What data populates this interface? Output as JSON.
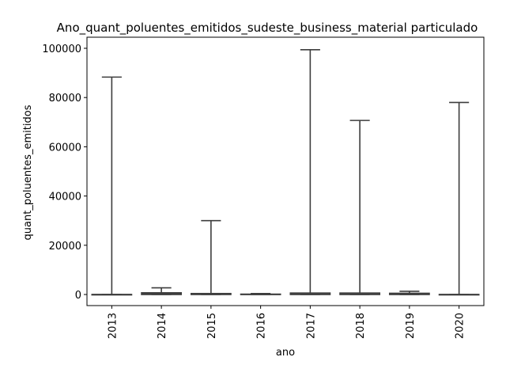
{
  "chart_data": {
    "type": "box",
    "title": "Ano_quant_poluentes_emitidos_sudeste_business_material particulado",
    "xlabel": "ano",
    "ylabel": "quant_poluentes_emitidos",
    "ylim": [
      -4500,
      104500
    ],
    "yticks": [
      0,
      20000,
      40000,
      60000,
      80000,
      100000
    ],
    "categories": [
      "2013",
      "2014",
      "2015",
      "2016",
      "2017",
      "2018",
      "2019",
      "2020"
    ],
    "boxes": [
      {
        "x": "2013",
        "min": 0,
        "q1": 0,
        "median": 0,
        "q3": 0,
        "max": 88300
      },
      {
        "x": "2014",
        "min": 0,
        "q1": 0,
        "median": 300,
        "q3": 700,
        "max": 2700
      },
      {
        "x": "2015",
        "min": 0,
        "q1": 0,
        "median": 100,
        "q3": 400,
        "max": 30000
      },
      {
        "x": "2016",
        "min": 0,
        "q1": 0,
        "median": 50,
        "q3": 150,
        "max": 400
      },
      {
        "x": "2017",
        "min": 0,
        "q1": 0,
        "median": 200,
        "q3": 600,
        "max": 99400
      },
      {
        "x": "2018",
        "min": 0,
        "q1": 0,
        "median": 200,
        "q3": 600,
        "max": 70700
      },
      {
        "x": "2019",
        "min": 0,
        "q1": 0,
        "median": 200,
        "q3": 500,
        "max": 1300
      },
      {
        "x": "2020",
        "min": 0,
        "q1": 0,
        "median": 0,
        "q3": 0,
        "max": 78000
      }
    ],
    "grid": false,
    "colors": {
      "box": "#3d3d3d",
      "frame": "#000000"
    }
  }
}
